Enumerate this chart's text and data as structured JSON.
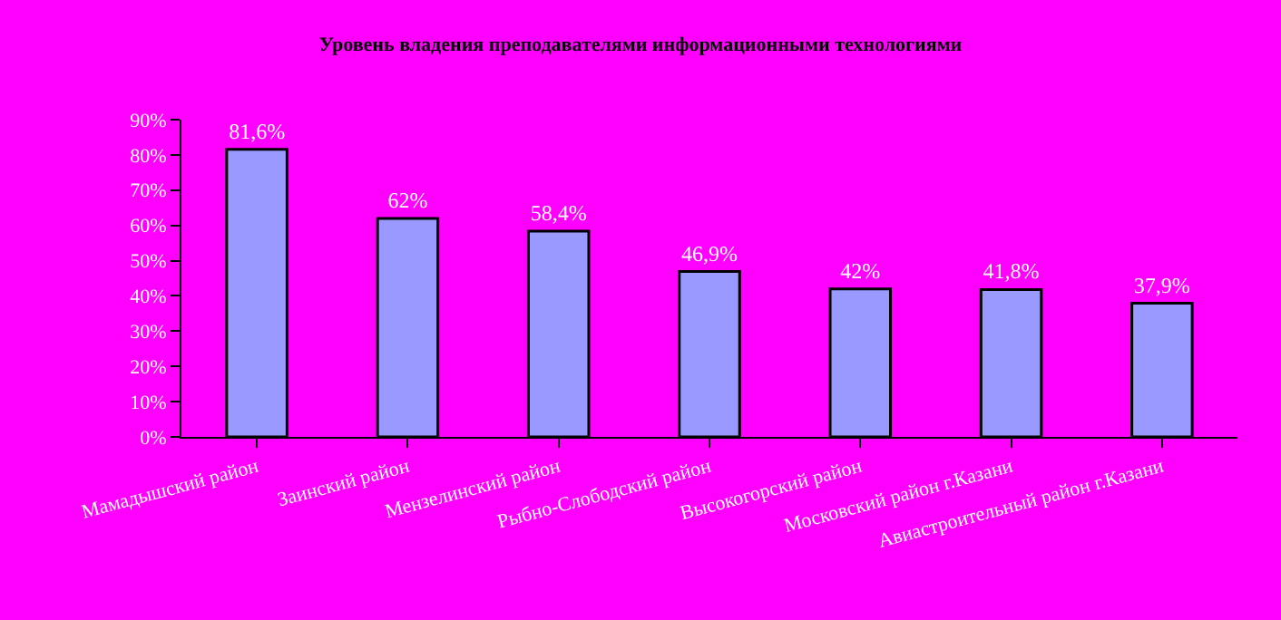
{
  "chart_data": {
    "type": "bar",
    "title": "Уровень владения преподавателями информационными технологиями",
    "categories": [
      "Мамадышский район",
      "Заинский район",
      "Мензелинский район",
      "Рыбно-Слободский район",
      "Высокогорский район",
      "Московский район г.Казани",
      "Авиастроительный район г.Казани"
    ],
    "values": [
      81.6,
      62,
      58.4,
      46.9,
      42,
      41.8,
      37.9
    ],
    "value_labels": [
      "81,6%",
      "62%",
      "58,4%",
      "46,9%",
      "42%",
      "41,8%",
      "37,9%"
    ],
    "color": "#9999ff",
    "ylim": [
      0,
      90
    ],
    "yticks": [
      {
        "value": 0,
        "label": "0%"
      },
      {
        "value": 10,
        "label": "10%"
      },
      {
        "value": 20,
        "label": "20%"
      },
      {
        "value": 30,
        "label": "30%"
      },
      {
        "value": 40,
        "label": "40%"
      },
      {
        "value": 50,
        "label": "50%"
      },
      {
        "value": 60,
        "label": "60%"
      },
      {
        "value": 70,
        "label": "70%"
      },
      {
        "value": 80,
        "label": "80%"
      },
      {
        "value": 90,
        "label": "90%"
      }
    ],
    "grid": false,
    "legend": false
  }
}
